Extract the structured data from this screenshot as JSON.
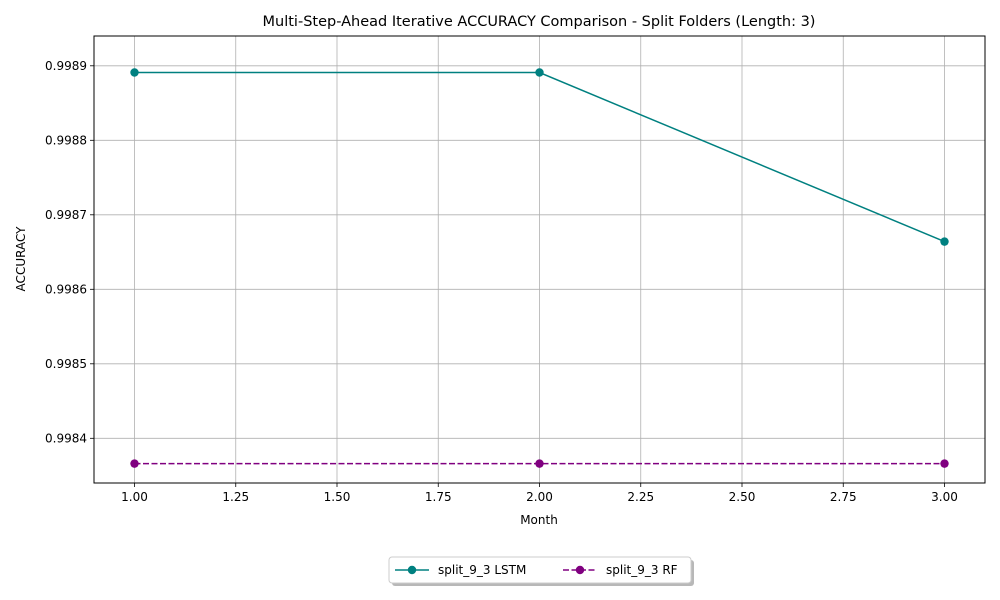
{
  "chart_data": {
    "type": "line",
    "title": "Multi-Step-Ahead Iterative ACCURACY Comparison - Split Folders (Length: 3)",
    "xlabel": "Month",
    "ylabel": "ACCURACY",
    "xlim": [
      0.9,
      3.1
    ],
    "ylim": [
      0.99834,
      0.99894
    ],
    "xticks": [
      "1.00",
      "1.25",
      "1.50",
      "1.75",
      "2.00",
      "2.25",
      "2.50",
      "2.75",
      "3.00"
    ],
    "yticks": [
      "0.9984",
      "0.9985",
      "0.9986",
      "0.9987",
      "0.9988",
      "0.9989"
    ],
    "grid": true,
    "legend_position": "bottom-center",
    "series": [
      {
        "name": "split_9_3 LSTM",
        "color": "#008080",
        "style": "solid",
        "marker": "circle",
        "x": [
          1,
          2,
          3
        ],
        "y": [
          0.998891,
          0.998891,
          0.998664
        ]
      },
      {
        "name": "split_9_3 RF",
        "color": "#800080",
        "style": "dashed",
        "marker": "circle",
        "x": [
          1,
          2,
          3
        ],
        "y": [
          0.998366,
          0.998366,
          0.998366
        ]
      }
    ]
  }
}
